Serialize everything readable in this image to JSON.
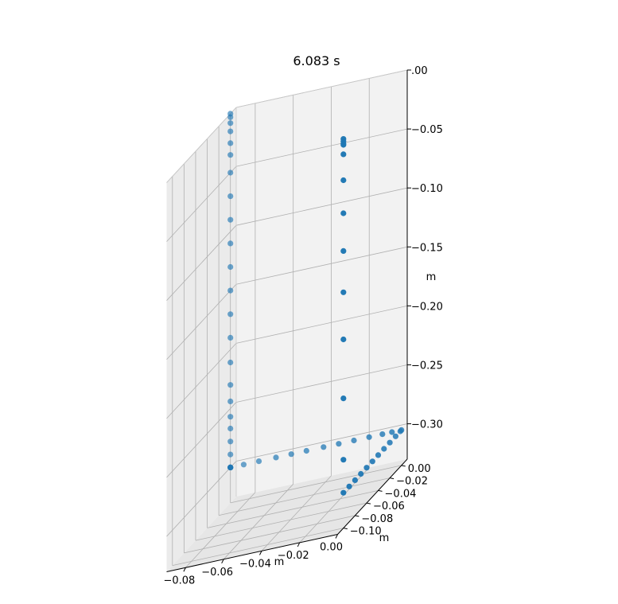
{
  "chart_data": {
    "type": "scatter",
    "title": "6.083 s",
    "projection": "3d",
    "xlabel": "m",
    "ylabel": "m",
    "zlabel": "m",
    "xlim": [
      -0.09,
      0.0
    ],
    "ylim": [
      -0.11,
      0.01
    ],
    "zlim": [
      -0.33,
      0.0
    ],
    "x_ticks": [
      -0.08,
      -0.06,
      -0.04,
      -0.02,
      0.0
    ],
    "x_tick_labels": [
      "−0.08",
      "−0.06",
      "−0.04",
      "−0.02",
      "0.00"
    ],
    "y_ticks": [
      0.0,
      -0.02,
      -0.04,
      -0.06,
      -0.08,
      -0.1
    ],
    "y_tick_labels": [
      "0.00",
      "−0.02",
      "−0.04",
      "−0.06",
      "−0.08",
      "−0.10"
    ],
    "z_ticks": [
      0.0,
      -0.05,
      -0.1,
      -0.15,
      -0.2,
      -0.25,
      -0.3
    ],
    "z_tick_labels": [
      ".00",
      "−0.05",
      "−0.10",
      "−0.15",
      "−0.20",
      "−0.25",
      "−0.30"
    ],
    "grid": true,
    "marker_color": "#1f77b4",
    "pane_colors": [
      "#f2f2f2",
      "#ebebeb",
      "#e6e6e6"
    ],
    "series": [
      {
        "points": [
          [
            0,
            -0.1,
            0
          ],
          [
            0,
            -0.1,
            -0.002
          ],
          [
            0,
            -0.1,
            -0.004
          ],
          [
            0,
            -0.1,
            -0.005
          ],
          [
            0,
            -0.1,
            -0.013
          ],
          [
            0,
            -0.1,
            -0.035
          ],
          [
            0,
            -0.1,
            -0.063
          ],
          [
            0,
            -0.1,
            -0.095
          ],
          [
            0,
            -0.1,
            -0.13
          ],
          [
            0,
            -0.1,
            -0.17
          ],
          [
            0,
            -0.1,
            -0.22
          ],
          [
            0,
            -0.1,
            -0.272
          ],
          [
            0,
            -0.1,
            -0.3
          ],
          [
            0,
            -0.09,
            -0.3
          ],
          [
            0,
            -0.08,
            -0.3
          ],
          [
            0,
            -0.07,
            -0.3
          ],
          [
            0,
            -0.06,
            -0.3
          ],
          [
            0,
            -0.05,
            -0.3
          ],
          [
            0,
            -0.04,
            -0.3
          ],
          [
            0,
            -0.03,
            -0.3
          ],
          [
            0,
            -0.02,
            -0.3
          ],
          [
            0,
            -0.01,
            -0.3
          ],
          [
            0,
            -0.002,
            -0.3
          ],
          [
            0,
            0,
            -0.3
          ],
          [
            -0.005,
            0,
            -0.3
          ],
          [
            -0.01,
            0,
            -0.3
          ],
          [
            -0.017,
            0,
            -0.3
          ],
          [
            -0.025,
            0,
            -0.3
          ],
          [
            -0.033,
            0,
            -0.3
          ],
          [
            -0.041,
            0,
            -0.3
          ],
          [
            -0.05,
            0,
            -0.3
          ],
          [
            -0.058,
            0,
            -0.3
          ],
          [
            -0.066,
            0,
            -0.3
          ],
          [
            -0.075,
            0,
            -0.3
          ],
          [
            -0.083,
            0,
            -0.3
          ],
          [
            -0.09,
            0,
            -0.3
          ],
          [
            -0.09,
            0,
            -0.3
          ],
          [
            -0.09,
            0,
            -0.3
          ],
          [
            -0.09,
            0,
            -0.3
          ],
          [
            -0.09,
            0,
            -0.3
          ],
          [
            -0.09,
            0,
            -0.289
          ],
          [
            -0.09,
            0,
            -0.278
          ],
          [
            -0.09,
            0,
            -0.267
          ],
          [
            -0.09,
            0,
            -0.257
          ],
          [
            -0.09,
            0,
            -0.244
          ],
          [
            -0.09,
            0,
            -0.23
          ],
          [
            -0.09,
            0,
            -0.211
          ],
          [
            -0.09,
            0,
            -0.19
          ],
          [
            -0.09,
            0,
            -0.17
          ],
          [
            -0.09,
            0,
            -0.15
          ],
          [
            -0.09,
            0,
            -0.13
          ],
          [
            -0.09,
            0,
            -0.11
          ],
          [
            -0.09,
            0,
            -0.09
          ],
          [
            -0.09,
            0,
            -0.07
          ],
          [
            -0.09,
            0,
            -0.05
          ],
          [
            -0.09,
            0,
            -0.035
          ],
          [
            -0.09,
            0,
            -0.025
          ],
          [
            -0.09,
            0,
            -0.015
          ],
          [
            -0.09,
            0,
            -0.008
          ],
          [
            -0.09,
            0,
            -0.003
          ],
          [
            -0.09,
            0,
            0
          ]
        ]
      }
    ]
  }
}
